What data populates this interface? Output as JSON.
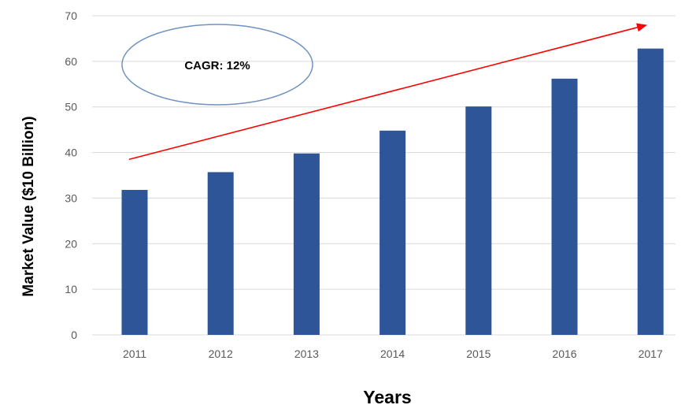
{
  "chart_data": {
    "type": "bar",
    "categories": [
      "2011",
      "2012",
      "2013",
      "2014",
      "2015",
      "2016",
      "2017"
    ],
    "values": [
      31.8,
      35.7,
      39.8,
      44.8,
      50.1,
      56.2,
      62.8
    ],
    "title": "",
    "xlabel": "Years",
    "ylabel": "Market Value ($10 Billion)",
    "ylim": [
      0,
      70
    ],
    "yticks": [
      "0",
      "10",
      "20",
      "30",
      "40",
      "50",
      "60",
      "70"
    ],
    "grid": "horizontal",
    "legend": "none",
    "annotation": "CAGR: 12%",
    "trend_arrow": {
      "from_value": 38.5,
      "to_value": 68.0,
      "color": "#ff0000"
    }
  },
  "colors": {
    "bar": "#2e5597",
    "grid": "#d9d9d9",
    "tick_text": "#595959",
    "ellipse_stroke": "#6f92c0",
    "arrow": "#ff0000"
  }
}
